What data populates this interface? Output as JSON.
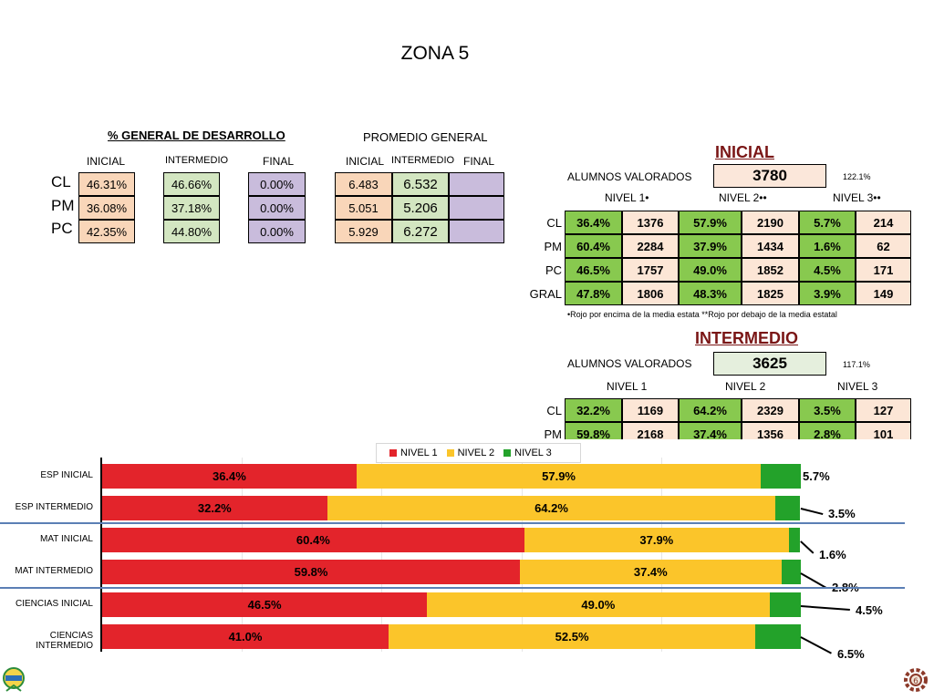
{
  "page": {
    "title": "ZONA 5"
  },
  "general": {
    "pct_title": "% GENERAL DE DESARROLLO",
    "pct_headers": [
      "INICIAL",
      "INTERMEDIO",
      "FINAL"
    ],
    "rows": [
      "CL",
      "PM",
      "PC"
    ],
    "inicial": [
      "46.31%",
      "36.08%",
      "42.35%"
    ],
    "intermedio": [
      "46.66%",
      "37.18%",
      "44.80%"
    ],
    "final": [
      "0.00%",
      "0.00%",
      "0.00%"
    ],
    "prom_title": "PROMEDIO GENERAL",
    "prom_headers": [
      "INICIAL",
      "INTERMEDIO",
      "FINAL"
    ],
    "prom_inicial": [
      "6.483",
      "5.051",
      "5.929"
    ],
    "prom_intermedio": [
      "6.532",
      "5.206",
      "6.272"
    ],
    "prom_final": [
      "",
      "",
      ""
    ]
  },
  "inicial_table": {
    "title": "INICIAL",
    "alumnos_label": "ALUMNOS VALORADOS",
    "alumnos_value": "3780",
    "pct": "122.1%",
    "nivel_headers": [
      "NIVEL 1•",
      "NIVEL 2••",
      "NIVEL 3••"
    ],
    "row_labels": [
      "CL",
      "PM",
      "PC",
      "GRAL"
    ],
    "rows": [
      [
        "36.4%",
        "1376",
        "57.9%",
        "2190",
        "5.7%",
        "214"
      ],
      [
        "60.4%",
        "2284",
        "37.9%",
        "1434",
        "1.6%",
        "62"
      ],
      [
        "46.5%",
        "1757",
        "49.0%",
        "1852",
        "4.5%",
        "171"
      ],
      [
        "47.8%",
        "1806",
        "48.3%",
        "1825",
        "3.9%",
        "149"
      ]
    ],
    "note": "•Rojo por encima de la media estata **Rojo por debajo de  la media estatal"
  },
  "intermedio_table": {
    "title": "INTERMEDIO",
    "alumnos_label": "ALUMNOS VALORADOS",
    "alumnos_value": "3625",
    "pct": "117.1%",
    "nivel_headers": [
      "NIVEL 1",
      "NIVEL 2",
      "NIVEL 3"
    ],
    "row_labels": [
      "CL",
      "PM"
    ],
    "rows": [
      [
        "32.2%",
        "1169",
        "64.2%",
        "2329",
        "3.5%",
        "127"
      ],
      [
        "59.8%",
        "2168",
        "37.4%",
        "1356",
        "2.8%",
        "101"
      ]
    ]
  },
  "colors": {
    "nivel1": "#e3242b",
    "nivel2": "#fbc52a",
    "nivel3": "#23a22a"
  },
  "chart_data": {
    "type": "bar",
    "orientation": "horizontal-stacked",
    "categories": [
      "ESP INICIAL",
      "ESP INTERMEDIO",
      "MAT INICIAL",
      "MAT INTERMEDIO",
      "CIENCIAS INICIAL",
      "CIENCIAS INTERMEDIO"
    ],
    "series": [
      {
        "name": "NIVEL 1",
        "values": [
          36.4,
          32.2,
          60.4,
          59.8,
          46.5,
          41.0
        ],
        "labels": [
          "36.4%",
          "32.2%",
          "60.4%",
          "59.8%",
          "46.5%",
          "41.0%"
        ]
      },
      {
        "name": "NIVEL 2",
        "values": [
          57.9,
          64.2,
          37.9,
          37.4,
          49.0,
          52.5
        ],
        "labels": [
          "57.9%",
          "64.2%",
          "37.9%",
          "37.4%",
          "49.0%",
          "52.5%"
        ]
      },
      {
        "name": "NIVEL 3",
        "values": [
          5.7,
          3.5,
          1.6,
          2.8,
          4.5,
          6.5
        ],
        "labels": [
          "5.7%",
          "3.5%",
          "1.6%",
          "2.8%",
          "4.5%",
          "6.5%"
        ]
      }
    ],
    "xlim": [
      0,
      100
    ],
    "legend": "top-center",
    "grid": true
  }
}
